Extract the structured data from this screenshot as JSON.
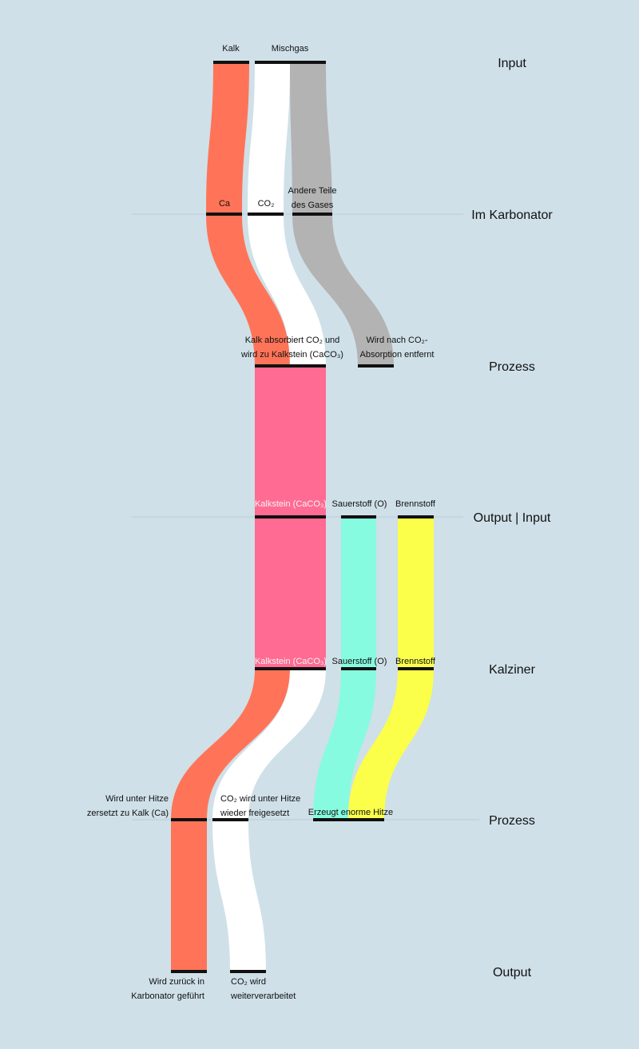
{
  "colors": {
    "background": "#cfe0e8",
    "kalk": "#ff7458",
    "co2": "#ffffff",
    "gas": "#b3b3b3",
    "kalkstein": "#ff6b92",
    "sauerstoff": "#86fbe0",
    "brennstoff": "#fbff4a",
    "bar": "#111111"
  },
  "stages": [
    {
      "id": "input",
      "label": "Input"
    },
    {
      "id": "karbonator",
      "label": "Im Karbonator"
    },
    {
      "id": "prozess1",
      "label": "Prozess"
    },
    {
      "id": "output_input",
      "label": "Output | Input"
    },
    {
      "id": "kalziner",
      "label": "Kalziner"
    },
    {
      "id": "prozess2",
      "label": "Prozess"
    },
    {
      "id": "output",
      "label": "Output"
    }
  ],
  "nodes": [
    {
      "id": "kalk",
      "lines": [
        "Kalk"
      ]
    },
    {
      "id": "mischgas",
      "lines": [
        "Mischgas"
      ]
    },
    {
      "id": "ca",
      "lines": [
        "Ca"
      ]
    },
    {
      "id": "co2",
      "lines": [
        "CO₂"
      ]
    },
    {
      "id": "andere",
      "lines": [
        "Andere Teile",
        "des Gases"
      ]
    },
    {
      "id": "absorbiert",
      "lines": [
        "Kalk absorbiert CO₂ und",
        "wird zu Kalkstein (CaCO₃)"
      ]
    },
    {
      "id": "entfernt",
      "lines": [
        "Wird nach CO₂-",
        "Absorption entfernt"
      ]
    },
    {
      "id": "kalkstein1",
      "lines": [
        "Kalkstein (CaCO₃)"
      ]
    },
    {
      "id": "sauerstoff1",
      "lines": [
        "Sauerstoff (O)"
      ]
    },
    {
      "id": "brennstoff1",
      "lines": [
        "Brennstoff"
      ]
    },
    {
      "id": "kalkstein2",
      "lines": [
        "Kalkstein (CaCO₃)"
      ]
    },
    {
      "id": "sauerstoff2",
      "lines": [
        "Sauerstoff (O)"
      ]
    },
    {
      "id": "brennstoff2",
      "lines": [
        "Brennstoff"
      ]
    },
    {
      "id": "zersetzt",
      "lines": [
        "Wird unter Hitze",
        "zersetzt zu Kalk (Ca)"
      ]
    },
    {
      "id": "freigesetzt",
      "lines": [
        "CO₂ wird unter Hitze",
        "wieder freigesetzt"
      ]
    },
    {
      "id": "hitze",
      "lines": [
        "Erzeugt enorme Hitze"
      ]
    },
    {
      "id": "zurueck",
      "lines": [
        "Wird zurück in",
        "Karbonator geführt"
      ]
    },
    {
      "id": "weiter",
      "lines": [
        "CO₂ wird",
        "weiterverarbeitet"
      ]
    }
  ],
  "flows": [
    {
      "id": "flow-kalk-to-ca",
      "color": "kalk"
    },
    {
      "id": "flow-co2-input",
      "color": "co2"
    },
    {
      "id": "flow-gas-input",
      "color": "gas"
    },
    {
      "id": "flow-ca-to-absorption",
      "color": "kalk"
    },
    {
      "id": "flow-co2-to-absorption",
      "color": "co2"
    },
    {
      "id": "flow-gas-removed",
      "color": "gas"
    },
    {
      "id": "flow-kalkstein-carbonator",
      "color": "kalkstein"
    },
    {
      "id": "flow-kalkstein-transfer",
      "color": "kalkstein"
    },
    {
      "id": "flow-sauerstoff-transfer",
      "color": "sauerstoff"
    },
    {
      "id": "flow-brennstoff-transfer",
      "color": "brennstoff"
    },
    {
      "id": "flow-kalk-decomposed",
      "color": "kalk"
    },
    {
      "id": "flow-co2-released",
      "color": "co2"
    },
    {
      "id": "flow-sauerstoff-heat",
      "color": "sauerstoff"
    },
    {
      "id": "flow-brennstoff-heat",
      "color": "brennstoff"
    },
    {
      "id": "flow-kalk-return",
      "color": "kalk"
    },
    {
      "id": "flow-co2-output",
      "color": "co2"
    }
  ]
}
